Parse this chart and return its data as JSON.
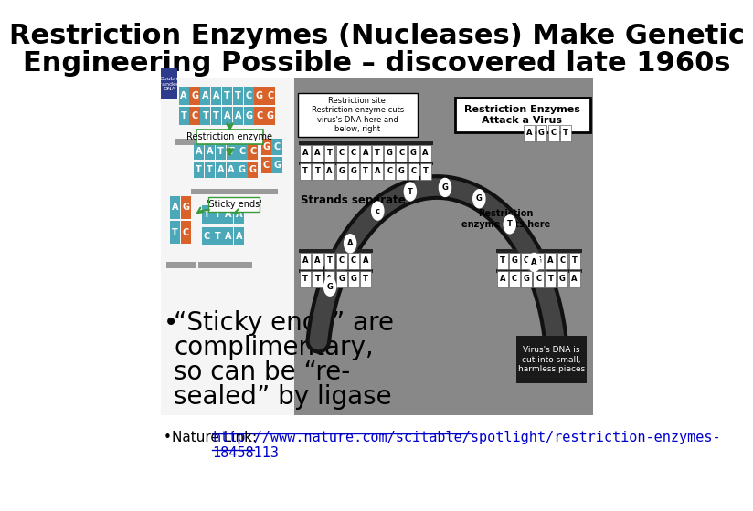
{
  "title_line1": "Restriction Enzymes (Nucleases) Make Genetic",
  "title_line2": "Engineering Possible – discovered late 1960s",
  "title_fontsize": 22,
  "title_color": "#000000",
  "bg_color": "#ffffff",
  "bullet1_line1": "“Sticky ends” are",
  "bullet1_line2": "complimentary,",
  "bullet1_line3": "so can be “re-",
  "bullet1_line4": "sealed” by ligase",
  "bullet_fontsize": 20,
  "nature_link_plain": "Nature Link: ",
  "nature_link_url": "http://www.nature.com/scitable/spotlight/restriction-enzymes-",
  "nature_link_num": "18458113",
  "nature_fontsize": 11,
  "link_color": "#0000cc",
  "teal": "#4ba8b8",
  "orange": "#d9622b",
  "green_arrow": "#3a9a3a",
  "gray_platform": "#9a9a9a",
  "dna_bg": "#f5f5f5",
  "right_bg": "#888888"
}
